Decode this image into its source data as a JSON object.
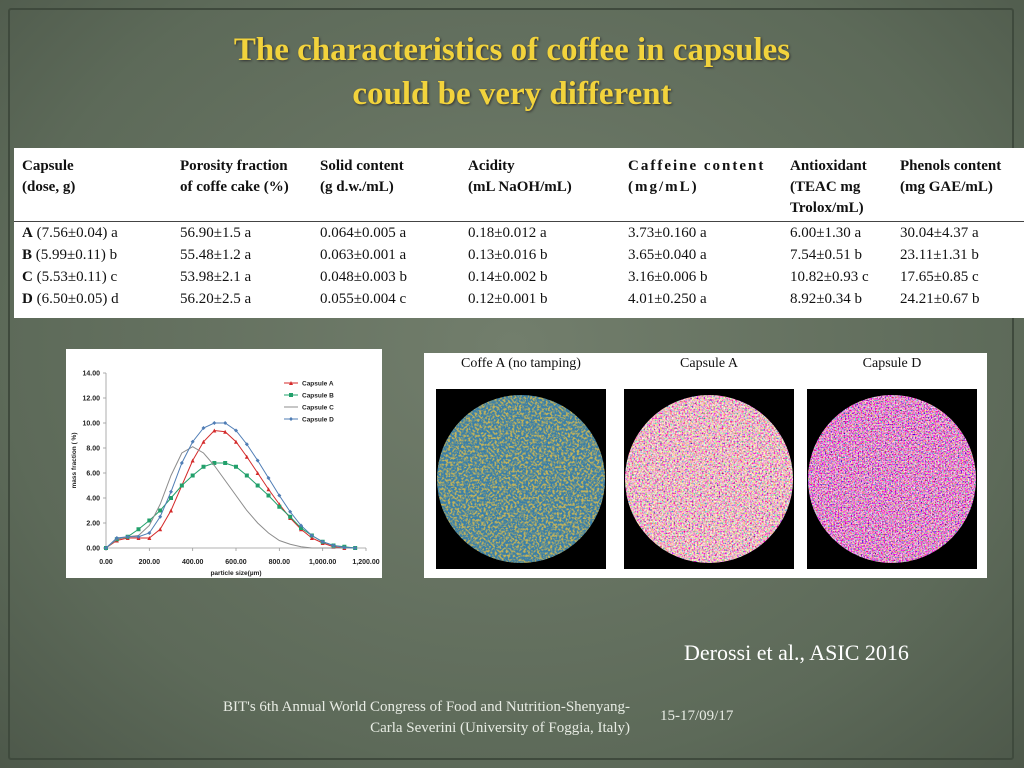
{
  "title": "The characteristics of coffee in capsules\ncould be very different",
  "table": {
    "headers": [
      "Capsule\n(dose, g)",
      "Porosity  fraction\nof coffe cake (%)",
      "Solid content\n(g d.w./mL)",
      "Acidity\n(mL NaOH/mL)",
      "Caffeine content\n(mg/mL)",
      "Antioxidant\n(TEAC mg\nTrolox/mL)",
      "Phenols content\n(mg GAE/mL)"
    ],
    "rows": [
      {
        "capsule": "A",
        "dose": "(7.56±0.04) a",
        "cells": [
          "56.90±1.5 a",
          "0.064±0.005 a",
          "0.18±0.012 a",
          "3.73±0.160 a",
          "6.00±1.30 a",
          "30.04±4.37 a"
        ]
      },
      {
        "capsule": "B",
        "dose": "(5.99±0.11) b",
        "cells": [
          "55.48±1.2 a",
          "0.063±0.001 a",
          "0.13±0.016 b",
          "3.65±0.040 a",
          "7.54±0.51 b",
          "23.11±1.31 b"
        ]
      },
      {
        "capsule": "C",
        "dose": "(5.53±0.11) c",
        "cells": [
          "53.98±2.1 a",
          "0.048±0.003 b",
          "0.14±0.002 b",
          "3.16±0.006 b",
          "10.82±0.93 c",
          "17.65±0.85 c"
        ]
      },
      {
        "capsule": "D",
        "dose": "(6.50±0.05) d",
        "cells": [
          "56.20±2.5 a",
          "0.055±0.004 c",
          "0.12±0.001 b",
          "4.01±0.250 a",
          "8.92±0.34 b",
          "24.21±0.67 b"
        ]
      }
    ]
  },
  "chart_data": {
    "type": "line",
    "x_label": "particle size(µm)",
    "y_label": "mass fraction ( %)",
    "x": [
      0,
      50,
      100,
      150,
      200,
      250,
      300,
      350,
      400,
      450,
      500,
      550,
      600,
      650,
      700,
      750,
      800,
      850,
      900,
      950,
      1000,
      1050,
      1100,
      1150
    ],
    "series": [
      {
        "name": "Capsule A",
        "color": "#d42a2a",
        "marker": "triangle",
        "values": [
          0,
          0.6,
          0.8,
          0.8,
          0.8,
          1.5,
          3.0,
          5.0,
          7.0,
          8.5,
          9.4,
          9.3,
          8.5,
          7.3,
          6.0,
          4.7,
          3.5,
          2.4,
          1.5,
          0.8,
          0.4,
          0.1,
          0,
          0
        ]
      },
      {
        "name": "Capsule B",
        "color": "#22a06b",
        "marker": "square",
        "values": [
          0,
          0.7,
          0.9,
          1.5,
          2.2,
          3.0,
          4.0,
          5.0,
          5.8,
          6.5,
          6.8,
          6.8,
          6.5,
          5.8,
          5.0,
          4.2,
          3.3,
          2.5,
          1.6,
          1.0,
          0.5,
          0.2,
          0.1,
          0
        ]
      },
      {
        "name": "Capsule C",
        "color": "#8c8c8c",
        "marker": "none",
        "values": [
          0,
          0.7,
          0.9,
          1.0,
          1.8,
          3.5,
          5.8,
          7.6,
          8.1,
          7.6,
          6.6,
          5.4,
          4.2,
          3.0,
          2.0,
          1.2,
          0.6,
          0.3,
          0.1,
          0,
          0,
          0,
          0,
          0
        ]
      },
      {
        "name": "Capsule D",
        "color": "#4f7db5",
        "marker": "diamond",
        "values": [
          0,
          0.8,
          0.9,
          0.9,
          1.2,
          2.5,
          4.5,
          6.8,
          8.5,
          9.6,
          10.0,
          10.0,
          9.4,
          8.3,
          7.0,
          5.6,
          4.2,
          2.9,
          1.8,
          1.0,
          0.5,
          0.2,
          0.05,
          0
        ]
      }
    ],
    "xlim": [
      0,
      1200
    ],
    "xticks": [
      {
        "value": 0,
        "label": "0.00"
      },
      {
        "value": 200,
        "label": "200.00"
      },
      {
        "value": 400,
        "label": "400.00"
      },
      {
        "value": 600,
        "label": "600.00"
      },
      {
        "value": 800,
        "label": "800.00"
      },
      {
        "value": 1000,
        "label": "1,000.00"
      },
      {
        "value": 1200,
        "label": "1,200.00"
      }
    ],
    "ylim": [
      0,
      14
    ],
    "yticks": [
      {
        "value": 0,
        "label": "0.00"
      },
      {
        "value": 2,
        "label": "2.00"
      },
      {
        "value": 4,
        "label": "4.00"
      },
      {
        "value": 6,
        "label": "6.00"
      },
      {
        "value": 8,
        "label": "8.00"
      },
      {
        "value": 10,
        "label": "10.00"
      },
      {
        "value": 12,
        "label": "12.00"
      },
      {
        "value": 14,
        "label": "14.00"
      }
    ],
    "legend": "upper right"
  },
  "images": [
    "Coffe A  (no tamping)",
    "Capsule A",
    "Capsule D"
  ],
  "citation": "Derossi et al., ASIC 2016",
  "footer": {
    "event": "BIT's 6th Annual World Congress of Food and Nutrition-Shenyang-\nCarla Severini (University of Foggia, Italy)",
    "date": "15-17/09/17"
  }
}
